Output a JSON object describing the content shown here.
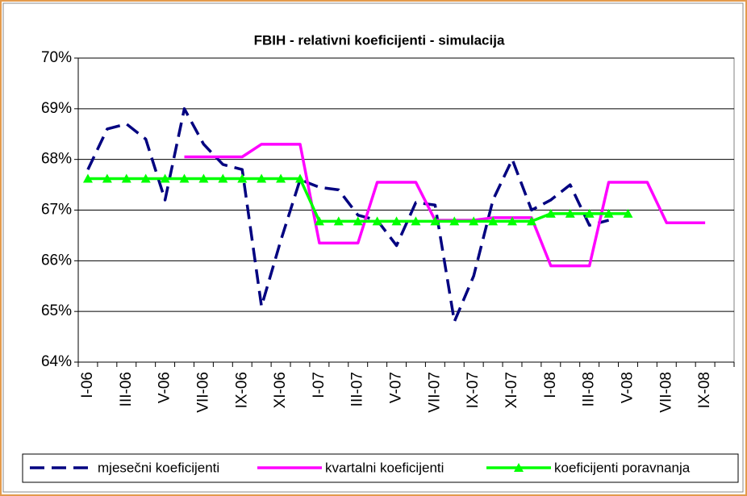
{
  "chart_data": {
    "type": "line",
    "title": "FBIH - relativni koeficijenti - simulacija",
    "categories": [
      "I-06",
      null,
      "III-06",
      null,
      "V-06",
      null,
      "VII-06",
      null,
      "IX-06",
      null,
      "XI-06",
      null,
      "I-07",
      null,
      "III-07",
      null,
      "V-07",
      null,
      "VII-07",
      null,
      "IX-07",
      null,
      "XI-07",
      null,
      "I-08",
      null,
      "III-08",
      null,
      "V-08",
      null,
      "VII-08",
      null,
      "IX-08",
      null
    ],
    "series": [
      {
        "name": "mjesečni koeficijenti",
        "color": "#000080",
        "line_style": "dashed",
        "values": [
          67.8,
          68.6,
          68.7,
          68.4,
          67.2,
          69.0,
          68.3,
          67.9,
          67.8,
          65.1,
          66.4,
          67.6,
          67.45,
          67.4,
          66.9,
          66.8,
          66.3,
          67.15,
          67.1,
          64.8,
          65.7,
          67.2,
          68.0,
          67.0,
          67.2,
          67.5,
          66.7,
          66.8,
          null,
          null,
          null,
          null,
          null,
          null
        ]
      },
      {
        "name": "kvartalni koeficijenti",
        "color": "#ff00ff",
        "line_style": "solid",
        "values": [
          null,
          null,
          null,
          null,
          null,
          68.05,
          68.05,
          68.05,
          68.05,
          68.3,
          68.3,
          68.3,
          66.35,
          66.35,
          66.35,
          67.55,
          67.55,
          67.55,
          66.8,
          66.8,
          66.8,
          66.85,
          66.85,
          66.85,
          65.9,
          65.9,
          65.9,
          67.55,
          67.55,
          67.55,
          66.75,
          66.75,
          66.75,
          null
        ]
      },
      {
        "name": "koeficijenti poravnanja",
        "color": "#00ff00",
        "line_style": "solid",
        "marker": "triangle",
        "values": [
          67.62,
          67.62,
          67.62,
          67.62,
          67.62,
          67.62,
          67.62,
          67.62,
          67.62,
          67.62,
          67.62,
          67.62,
          66.78,
          66.78,
          66.78,
          66.78,
          66.78,
          66.78,
          66.78,
          66.78,
          66.78,
          66.78,
          66.78,
          66.78,
          66.93,
          66.93,
          66.93,
          66.93,
          66.93,
          null,
          null,
          null,
          null,
          null
        ]
      }
    ],
    "ylim": [
      64,
      70
    ],
    "yticks": [
      {
        "value": 64,
        "label": "64%"
      },
      {
        "value": 65,
        "label": "65%"
      },
      {
        "value": 66,
        "label": "66%"
      },
      {
        "value": 67,
        "label": "67%"
      },
      {
        "value": 68,
        "label": "68%"
      },
      {
        "value": 69,
        "label": "69%"
      },
      {
        "value": 70,
        "label": "70%"
      }
    ],
    "grid": true,
    "legend": "bottom"
  }
}
